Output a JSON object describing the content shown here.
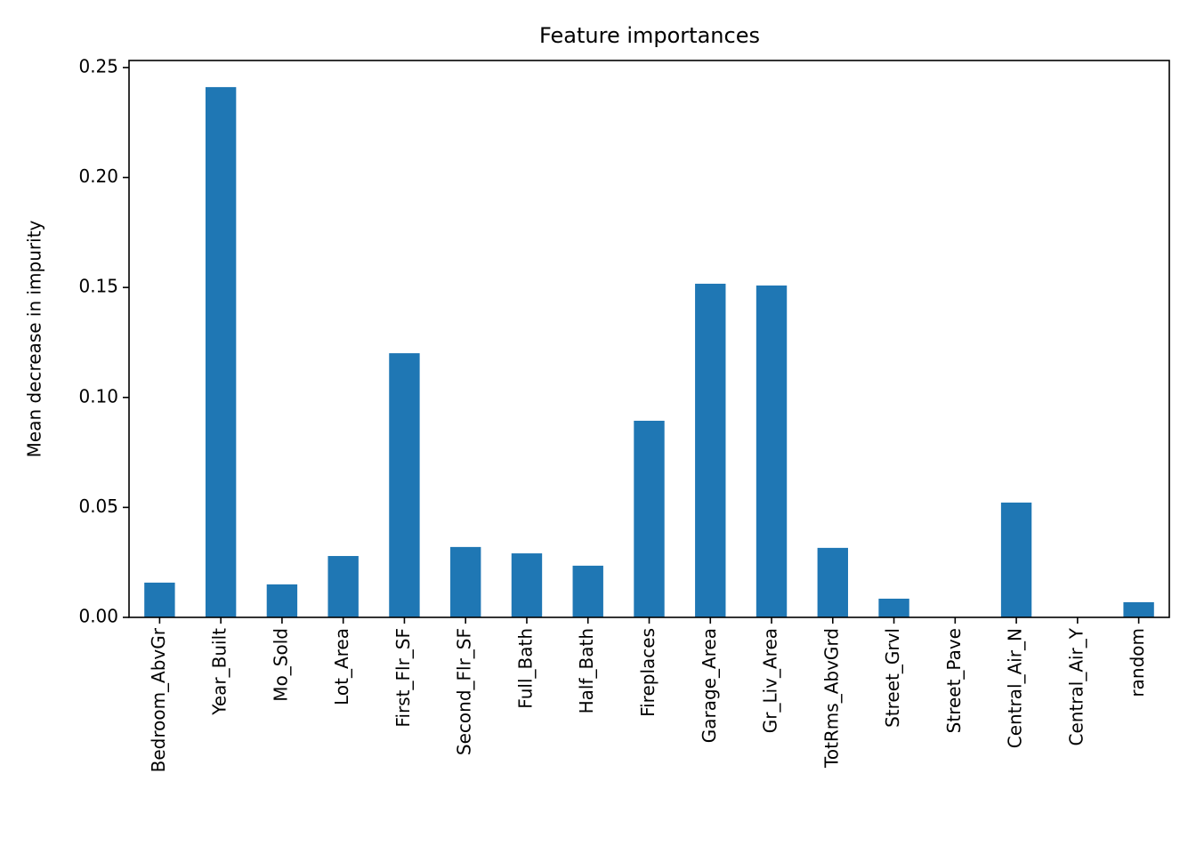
{
  "chart_data": {
    "type": "bar",
    "title": "Feature importances",
    "y_label": "Mean decrease in impurity",
    "categories": [
      "Bedroom_AbvGr",
      "Year_Built",
      "Mo_Sold",
      "Lot_Area",
      "First_Flr_SF",
      "Second_Flr_SF",
      "Full_Bath",
      "Half_Bath",
      "Fireplaces",
      "Garage_Area",
      "Gr_Liv_Area",
      "TotRms_AbvGrd",
      "Street_Grvl",
      "Street_Pave",
      "Central_Air_N",
      "Central_Air_Y",
      "random"
    ],
    "values": [
      0.0158,
      0.2411,
      0.015,
      0.0279,
      0.1201,
      0.032,
      0.0291,
      0.0235,
      0.0894,
      0.1517,
      0.1509,
      0.0316,
      0.0085,
      0,
      0.0522,
      0,
      0.0069
    ],
    "color": "#1f77b4",
    "ylim": [
      0,
      0.2532
    ],
    "yticks": [
      {
        "value": 0,
        "label": "0.00"
      },
      {
        "value": 0.05,
        "label": "0.05"
      },
      {
        "value": 0.1,
        "label": "0.10"
      },
      {
        "value": 0.15,
        "label": "0.15"
      },
      {
        "value": 0.2,
        "label": "0.20"
      },
      {
        "value": 0.25,
        "label": "0.25"
      }
    ],
    "grid": false
  }
}
